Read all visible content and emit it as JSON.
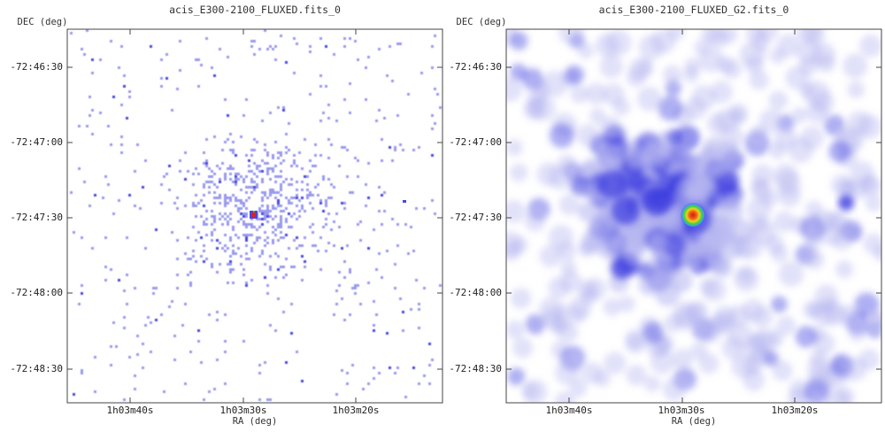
{
  "chart_data": [
    {
      "type": "heatmap",
      "title": "acis_E300-2100_FLUXED.fits_0",
      "xlabel": "RA (deg)",
      "ylabel": "DEC (deg)",
      "x_ticks": [
        "1h03m40s",
        "1h03m30s",
        "1h03m20s"
      ],
      "y_ticks": [
        "-72:46:30",
        "-72:47:00",
        "-72:47:30",
        "-72:48:00",
        "-72:48:30"
      ],
      "colormap": "white-blue-green-yellow-red",
      "style": "sparse-counts",
      "colors": {
        "low": "#9a9aee",
        "mid": "#4848e0",
        "peak": "#e02020"
      }
    },
    {
      "type": "heatmap",
      "title": "acis_E300-2100_FLUXED_G2.fits_0",
      "xlabel": "RA (deg)",
      "ylabel": "DEC (deg)",
      "x_ticks": [
        "1h03m40s",
        "1h03m30s",
        "1h03m20s"
      ],
      "y_ticks": [
        "-72:46:30",
        "-72:47:00",
        "-72:47:30",
        "-72:48:00",
        "-72:48:30"
      ],
      "colormap": "white-blue-green-yellow-red",
      "style": "smoothed",
      "colors": {
        "low": "#b4b4f0",
        "mid": "#3a3ae0",
        "peak": "#e02020"
      }
    }
  ]
}
